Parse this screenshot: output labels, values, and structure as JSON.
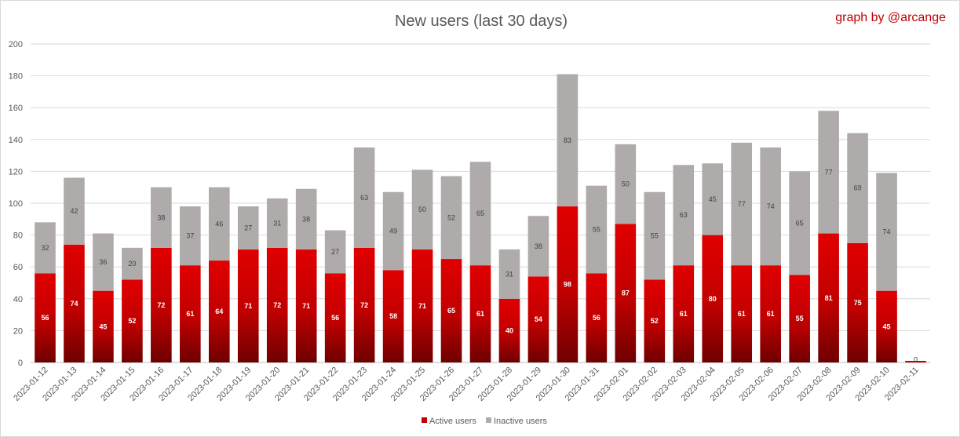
{
  "chart_data": {
    "type": "bar",
    "stacked": true,
    "title": "New users (last 30 days)",
    "credit": "graph by @arcange",
    "xlabel": "",
    "ylabel": "",
    "ylim": [
      0,
      200
    ],
    "yticks": [
      0,
      20,
      40,
      60,
      80,
      100,
      120,
      140,
      160,
      180,
      200
    ],
    "grid": true,
    "legend_position": "bottom",
    "categories": [
      "2023-01-12",
      "2023-01-13",
      "2023-01-14",
      "2023-01-15",
      "2023-01-16",
      "2023-01-17",
      "2023-01-18",
      "2023-01-19",
      "2023-01-20",
      "2023-01-21",
      "2023-01-22",
      "2023-01-23",
      "2023-01-24",
      "2023-01-25",
      "2023-01-26",
      "2023-01-27",
      "2023-01-28",
      "2023-01-29",
      "2023-01-30",
      "2023-01-31",
      "2023-02-01",
      "2023-02-02",
      "2023-02-03",
      "2023-02-04",
      "2023-02-05",
      "2023-02-06",
      "2023-02-07",
      "2023-02-08",
      "2023-02-09",
      "2023-02-10",
      "2023-02-11"
    ],
    "series": [
      {
        "name": "Active users",
        "color": "#c00000",
        "values": [
          56,
          74,
          45,
          52,
          72,
          61,
          64,
          71,
          72,
          71,
          56,
          72,
          58,
          71,
          65,
          61,
          40,
          54,
          98,
          56,
          87,
          52,
          61,
          80,
          61,
          61,
          55,
          81,
          75,
          45,
          1
        ]
      },
      {
        "name": "Inactive users",
        "color": "#afabab",
        "values": [
          32,
          42,
          36,
          20,
          38,
          37,
          46,
          27,
          31,
          38,
          27,
          63,
          49,
          50,
          52,
          65,
          31,
          38,
          83,
          55,
          50,
          55,
          63,
          45,
          77,
          74,
          65,
          77,
          69,
          74,
          0
        ]
      }
    ]
  }
}
